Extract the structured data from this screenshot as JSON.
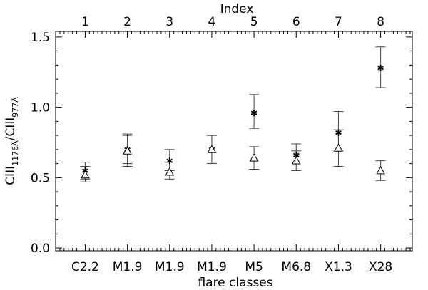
{
  "chart_data": {
    "type": "scatter",
    "title": "",
    "top_axis_label": "Index",
    "xlabel": "flare classes",
    "ylabel_main": "CIII",
    "ylabel_sub1": "1176Å",
    "ylabel_slash": "/CIII",
    "ylabel_sub2": "977Å",
    "index": [
      1,
      2,
      3,
      4,
      5,
      6,
      7,
      8
    ],
    "categories": [
      "C2.2",
      "M1.9",
      "M1.9",
      "M1.9",
      "M5",
      "M6.8",
      "X1.3",
      "X28"
    ],
    "yticks": [
      "0.0",
      "0.5",
      "1.0",
      "1.5"
    ],
    "ylim": [
      -0.02,
      1.54
    ],
    "xlim": [
      0.3,
      8.75
    ],
    "grid": false,
    "legend": "none",
    "series": [
      {
        "marker": "asterisk",
        "values": [
          0.55,
          0.7,
          0.62,
          0.7,
          0.96,
          0.66,
          0.82,
          1.28
        ],
        "error_low": [
          0.49,
          0.6,
          0.55,
          0.61,
          0.85,
          0.59,
          0.69,
          1.14
        ],
        "error_high": [
          0.61,
          0.81,
          0.7,
          0.8,
          1.09,
          0.74,
          0.97,
          1.43
        ]
      },
      {
        "marker": "triangle",
        "values": [
          0.52,
          0.69,
          0.54,
          0.7,
          0.64,
          0.62,
          0.71,
          0.55
        ],
        "error_low": [
          0.47,
          0.58,
          0.49,
          0.6,
          0.56,
          0.55,
          0.58,
          0.48
        ],
        "error_high": [
          0.58,
          0.8,
          0.61,
          0.8,
          0.72,
          0.69,
          0.84,
          0.62
        ]
      }
    ]
  }
}
